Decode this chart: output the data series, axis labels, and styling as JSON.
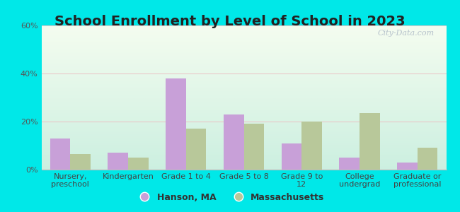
{
  "title": "School Enrollment by Level of School in 2023",
  "categories": [
    "Nursery,\npreschool",
    "Kindergarten",
    "Grade 1 to 4",
    "Grade 5 to 8",
    "Grade 9 to\n12",
    "College\nundergrad",
    "Graduate or\nprofessional"
  ],
  "hanson_values": [
    13,
    7,
    38,
    23,
    11,
    5,
    3
  ],
  "ma_values": [
    6.5,
    5,
    17,
    19,
    20,
    23.5,
    9
  ],
  "hanson_color": "#c8a0d8",
  "ma_color": "#b8c89a",
  "background_outer": "#00e8e8",
  "background_inner_topleft": "#e8f5e0",
  "background_inner_topright": "#f8fcf5",
  "background_inner_bottom": "#c8eee0",
  "ylim": [
    0,
    60
  ],
  "yticks": [
    0,
    20,
    40,
    60
  ],
  "ytick_labels": [
    "0%",
    "20%",
    "40%",
    "60%"
  ],
  "bar_width": 0.35,
  "legend_hanson": "Hanson, MA",
  "legend_ma": "Massachusetts",
  "watermark": "City-Data.com",
  "title_fontsize": 14,
  "tick_fontsize": 8,
  "legend_fontsize": 9,
  "grid_color": "#e8c8c8",
  "title_color": "#222222"
}
